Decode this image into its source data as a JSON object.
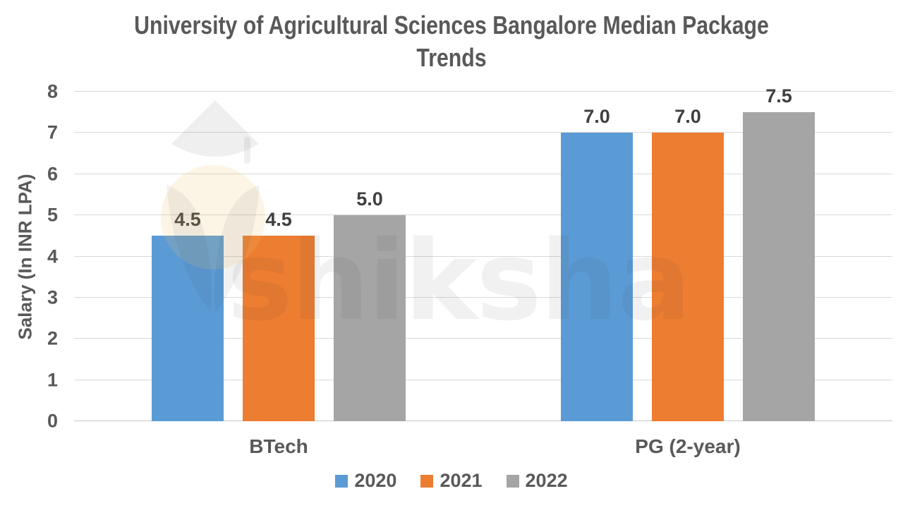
{
  "title": "University of Agricultural Sciences Bangalore Median Package Trends",
  "watermark": {
    "brand": "shiksha",
    "icons": [
      "graduation-cap-icon",
      "torch-flame-icon"
    ]
  },
  "colors": {
    "series_2020": "#5B9BD5",
    "series_2021": "#ED7D31",
    "series_2022": "#A5A5A5",
    "axis_text": "#595959",
    "data_label": "#3F3F3F",
    "gridline": "#D9D9D9",
    "background": "#FFFFFF"
  },
  "chart_data": {
    "type": "bar",
    "title": "University of Agricultural Sciences Bangalore Median Package Trends",
    "categories": [
      "BTech",
      "PG (2-year)"
    ],
    "series": [
      {
        "name": "2020",
        "color": "#5B9BD5",
        "values": [
          4.5,
          7.0
        ],
        "labels": [
          "4.5",
          "7.0"
        ]
      },
      {
        "name": "2021",
        "color": "#ED7D31",
        "values": [
          4.5,
          7.0
        ],
        "labels": [
          "4.5",
          "7.0"
        ]
      },
      {
        "name": "2022",
        "color": "#A5A5A5",
        "values": [
          5.0,
          7.5
        ],
        "labels": [
          "5.0",
          "7.5"
        ]
      }
    ],
    "xlabel": "",
    "ylabel": "Salary (In INR LPA)",
    "ylim": [
      0,
      8
    ],
    "yticks": [
      0,
      1,
      2,
      3,
      4,
      5,
      6,
      7,
      8
    ],
    "grid": true,
    "legend_position": "bottom"
  }
}
